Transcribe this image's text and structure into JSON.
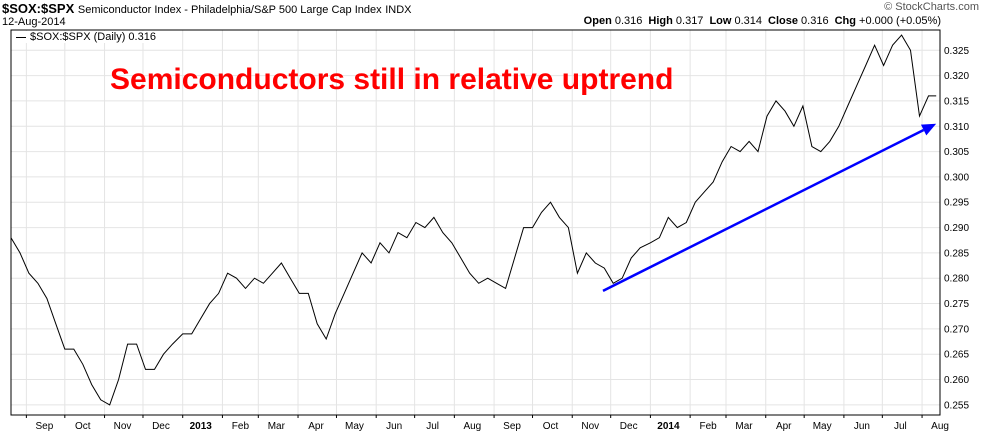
{
  "header": {
    "symbol": "$SOX:$SPX",
    "description": "Semiconductor Index - Philadelphia/S&P 500 Large Cap Index",
    "exchange": "INDX",
    "date": "12-Aug-2014",
    "watermark": "© StockCharts.com",
    "ohlc": [
      {
        "label": "Open",
        "value": "0.316"
      },
      {
        "label": "High",
        "value": "0.317"
      },
      {
        "label": "Low",
        "value": "0.314"
      },
      {
        "label": "Close",
        "value": "0.316"
      },
      {
        "label": "Chg",
        "value": "+0.000 (+0.05%)"
      }
    ]
  },
  "legend": {
    "label": "$SOX:$SPX (Daily) 0.316"
  },
  "annotation": {
    "text": "Semiconductors still in relative uptrend",
    "color": "#ff0000"
  },
  "chart_data": {
    "type": "line",
    "y_axis_position": "right",
    "ylim": [
      0.253,
      0.329
    ],
    "y_ticks": [
      "0.325",
      "0.320",
      "0.315",
      "0.310",
      "0.305",
      "0.300",
      "0.295",
      "0.290",
      "0.285",
      "0.280",
      "0.275",
      "0.270",
      "0.265",
      "0.260",
      "0.255"
    ],
    "x_ticks": [
      {
        "label": "Sep",
        "bold": false
      },
      {
        "label": "Oct",
        "bold": false
      },
      {
        "label": "Nov",
        "bold": false
      },
      {
        "label": "Dec",
        "bold": false
      },
      {
        "label": "2013",
        "bold": true
      },
      {
        "label": "Feb",
        "bold": false
      },
      {
        "label": "Mar",
        "bold": false
      },
      {
        "label": "Apr",
        "bold": false
      },
      {
        "label": "May",
        "bold": false
      },
      {
        "label": "Jun",
        "bold": false
      },
      {
        "label": "Jul",
        "bold": false
      },
      {
        "label": "Aug",
        "bold": false
      },
      {
        "label": "Sep",
        "bold": false
      },
      {
        "label": "Oct",
        "bold": false
      },
      {
        "label": "Nov",
        "bold": false
      },
      {
        "label": "Dec",
        "bold": false
      },
      {
        "label": "2014",
        "bold": true
      },
      {
        "label": "Feb",
        "bold": false
      },
      {
        "label": "Mar",
        "bold": false
      },
      {
        "label": "Apr",
        "bold": false
      },
      {
        "label": "May",
        "bold": false
      },
      {
        "label": "Jun",
        "bold": false
      },
      {
        "label": "Jul",
        "bold": false
      },
      {
        "label": "Aug",
        "bold": false
      }
    ],
    "series": [
      {
        "color": "#000000",
        "points": [
          [
            "2012-08-20",
            0.288
          ],
          [
            "2012-08-27",
            0.285
          ],
          [
            "2012-09-03",
            0.281
          ],
          [
            "2012-09-10",
            0.279
          ],
          [
            "2012-09-17",
            0.276
          ],
          [
            "2012-09-24",
            0.271
          ],
          [
            "2012-10-01",
            0.266
          ],
          [
            "2012-10-08",
            0.266
          ],
          [
            "2012-10-15",
            0.263
          ],
          [
            "2012-10-22",
            0.259
          ],
          [
            "2012-10-29",
            0.256
          ],
          [
            "2012-11-05",
            0.255
          ],
          [
            "2012-11-12",
            0.26
          ],
          [
            "2012-11-19",
            0.267
          ],
          [
            "2012-11-26",
            0.267
          ],
          [
            "2012-12-03",
            0.262
          ],
          [
            "2012-12-10",
            0.262
          ],
          [
            "2012-12-17",
            0.265
          ],
          [
            "2012-12-24",
            0.267
          ],
          [
            "2013-01-01",
            0.269
          ],
          [
            "2013-01-08",
            0.269
          ],
          [
            "2013-01-15",
            0.272
          ],
          [
            "2013-01-22",
            0.275
          ],
          [
            "2013-01-29",
            0.277
          ],
          [
            "2013-02-05",
            0.281
          ],
          [
            "2013-02-12",
            0.28
          ],
          [
            "2013-02-19",
            0.278
          ],
          [
            "2013-02-26",
            0.28
          ],
          [
            "2013-03-05",
            0.279
          ],
          [
            "2013-03-12",
            0.281
          ],
          [
            "2013-03-19",
            0.283
          ],
          [
            "2013-03-26",
            0.28
          ],
          [
            "2013-04-02",
            0.277
          ],
          [
            "2013-04-09",
            0.277
          ],
          [
            "2013-04-16",
            0.271
          ],
          [
            "2013-04-23",
            0.268
          ],
          [
            "2013-04-30",
            0.273
          ],
          [
            "2013-05-07",
            0.277
          ],
          [
            "2013-05-14",
            0.281
          ],
          [
            "2013-05-21",
            0.285
          ],
          [
            "2013-05-28",
            0.283
          ],
          [
            "2013-06-04",
            0.287
          ],
          [
            "2013-06-11",
            0.285
          ],
          [
            "2013-06-18",
            0.289
          ],
          [
            "2013-06-25",
            0.288
          ],
          [
            "2013-07-02",
            0.291
          ],
          [
            "2013-07-09",
            0.29
          ],
          [
            "2013-07-16",
            0.292
          ],
          [
            "2013-07-23",
            0.289
          ],
          [
            "2013-07-30",
            0.287
          ],
          [
            "2013-08-06",
            0.284
          ],
          [
            "2013-08-13",
            0.281
          ],
          [
            "2013-08-20",
            0.279
          ],
          [
            "2013-08-27",
            0.28
          ],
          [
            "2013-09-03",
            0.279
          ],
          [
            "2013-09-10",
            0.278
          ],
          [
            "2013-09-17",
            0.284
          ],
          [
            "2013-09-24",
            0.29
          ],
          [
            "2013-10-01",
            0.29
          ],
          [
            "2013-10-08",
            0.293
          ],
          [
            "2013-10-15",
            0.295
          ],
          [
            "2013-10-22",
            0.292
          ],
          [
            "2013-10-29",
            0.29
          ],
          [
            "2013-11-05",
            0.281
          ],
          [
            "2013-11-12",
            0.285
          ],
          [
            "2013-11-19",
            0.283
          ],
          [
            "2013-11-26",
            0.282
          ],
          [
            "2013-12-03",
            0.279
          ],
          [
            "2013-12-10",
            0.28
          ],
          [
            "2013-12-17",
            0.284
          ],
          [
            "2013-12-24",
            0.286
          ],
          [
            "2014-01-01",
            0.287
          ],
          [
            "2014-01-08",
            0.288
          ],
          [
            "2014-01-15",
            0.292
          ],
          [
            "2014-01-22",
            0.29
          ],
          [
            "2014-01-29",
            0.291
          ],
          [
            "2014-02-05",
            0.295
          ],
          [
            "2014-02-12",
            0.297
          ],
          [
            "2014-02-19",
            0.299
          ],
          [
            "2014-02-26",
            0.303
          ],
          [
            "2014-03-05",
            0.306
          ],
          [
            "2014-03-12",
            0.305
          ],
          [
            "2014-03-19",
            0.307
          ],
          [
            "2014-03-26",
            0.305
          ],
          [
            "2014-04-02",
            0.312
          ],
          [
            "2014-04-09",
            0.315
          ],
          [
            "2014-04-16",
            0.313
          ],
          [
            "2014-04-23",
            0.31
          ],
          [
            "2014-04-30",
            0.314
          ],
          [
            "2014-05-07",
            0.306
          ],
          [
            "2014-05-14",
            0.305
          ],
          [
            "2014-05-21",
            0.307
          ],
          [
            "2014-05-28",
            0.31
          ],
          [
            "2014-06-04",
            0.314
          ],
          [
            "2014-06-11",
            0.318
          ],
          [
            "2014-06-18",
            0.322
          ],
          [
            "2014-06-25",
            0.326
          ],
          [
            "2014-07-02",
            0.322
          ],
          [
            "2014-07-09",
            0.326
          ],
          [
            "2014-07-16",
            0.328
          ],
          [
            "2014-07-23",
            0.325
          ],
          [
            "2014-07-30",
            0.312
          ],
          [
            "2014-08-06",
            0.316
          ],
          [
            "2014-08-12",
            0.316
          ]
        ]
      }
    ],
    "trendline": {
      "color": "#0000ff",
      "from": [
        "2013-11-25",
        0.2775
      ],
      "to": [
        "2014-08-12",
        0.3105
      ]
    }
  }
}
